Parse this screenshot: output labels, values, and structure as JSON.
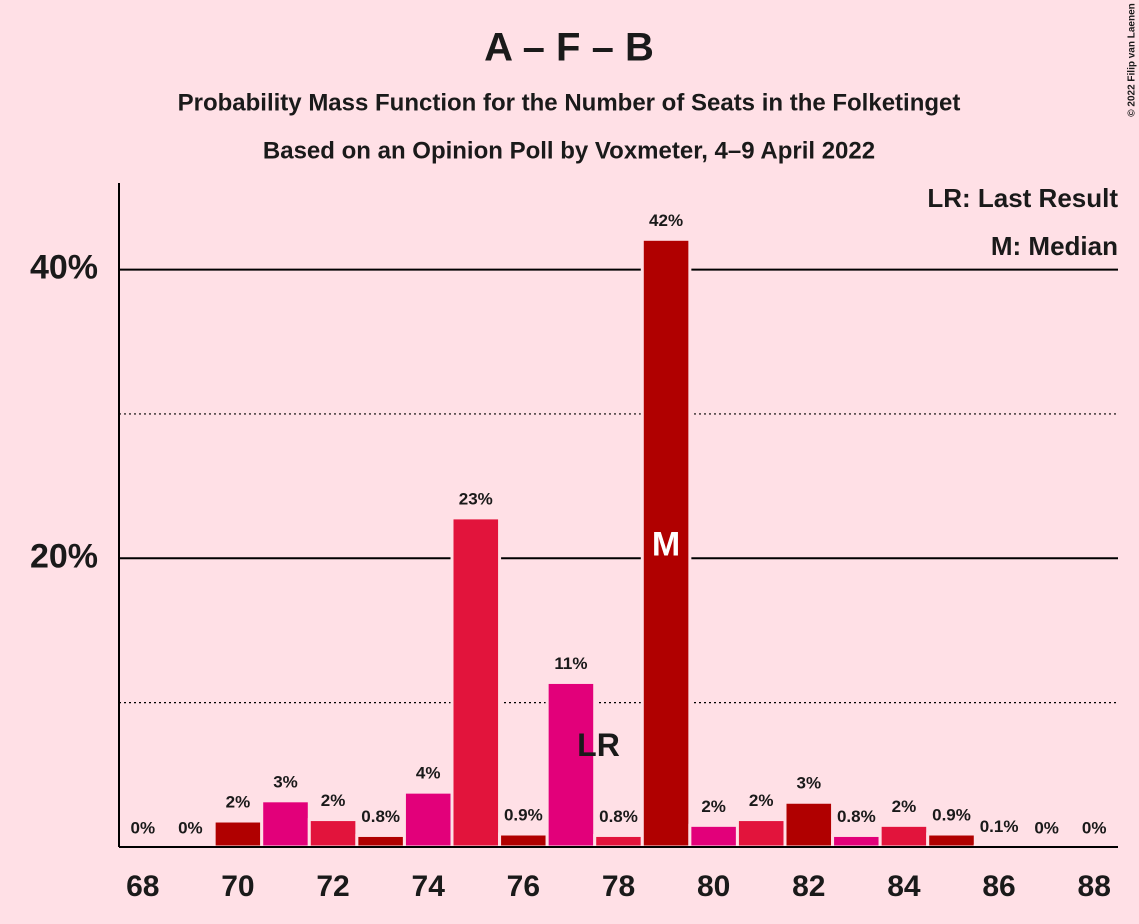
{
  "chart_data": {
    "type": "bar",
    "title": "A – F – B",
    "subtitles": [
      "Probability Mass Function for the Number of Seats in the Folketinget",
      "Based on an Opinion Poll by Voxmeter, 4–9 April 2022"
    ],
    "credit": "© 2022 Filip van Laenen",
    "x": [
      68,
      69,
      70,
      71,
      72,
      73,
      74,
      75,
      76,
      77,
      78,
      79,
      80,
      81,
      82,
      83,
      84,
      85,
      86,
      87,
      88
    ],
    "values": [
      0,
      0,
      1.8,
      3.2,
      1.9,
      0.8,
      3.8,
      22.8,
      0.9,
      11.4,
      0.8,
      42.1,
      1.5,
      1.9,
      3.1,
      0.8,
      1.5,
      0.9,
      0.1,
      0,
      0
    ],
    "value_labels": [
      "0%",
      "0%",
      "2%",
      "3%",
      "2%",
      "0.8%",
      "4%",
      "23%",
      "0.9%",
      "11%",
      "0.8%",
      "42%",
      "2%",
      "2%",
      "3%",
      "0.8%",
      "2%",
      "0.9%",
      "0.1%",
      "0%",
      "0%"
    ],
    "colors": [
      "#e2007a",
      "#e2143c",
      "#b00000",
      "#e2007a",
      "#e2143c",
      "#b00000",
      "#e2007a",
      "#e2143c",
      "#b00000",
      "#e2007a",
      "#e2143c",
      "#b00000",
      "#e2007a",
      "#e2143c",
      "#b00000",
      "#e2007a",
      "#e2143c",
      "#b00000",
      "#e2007a",
      "#e2143c",
      "#b00000"
    ],
    "xlim": [
      67.5,
      88.5
    ],
    "xticks": [
      68,
      70,
      72,
      74,
      76,
      78,
      80,
      82,
      84,
      86,
      88
    ],
    "ylim": [
      0,
      46
    ],
    "yticks": [
      {
        "value": 20,
        "label": "20%"
      },
      {
        "value": 40,
        "label": "40%"
      }
    ],
    "minor_yticks": [
      10,
      30
    ],
    "grid": true,
    "annotations": [
      {
        "text": "LR",
        "x": 78
      },
      {
        "text": "M",
        "x": 79
      }
    ],
    "legend": [
      "LR: Last Result",
      "M: Median"
    ]
  }
}
